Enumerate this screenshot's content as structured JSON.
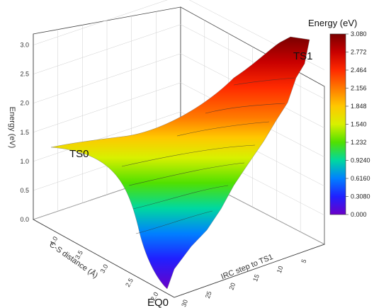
{
  "chart_data": {
    "type": "surface3d",
    "title": "",
    "zlabel": "Energy (eV)",
    "xlabel": "C-S distance (Å)",
    "ylabel": "IRC step to TS1",
    "zlim": [
      0,
      3.08
    ],
    "z_ticks": [
      "0.0",
      "0.5",
      "1.0",
      "1.5",
      "2.0",
      "2.5",
      "3.0"
    ],
    "x_ticks": [
      "2.0",
      "2.5",
      "3.0",
      "3.5",
      "4.0"
    ],
    "y_ticks": [
      "5",
      "10",
      "15",
      "20",
      "25",
      "30"
    ],
    "colorbar": {
      "title": "Energy (eV)",
      "levels": [
        "3.080",
        "2.772",
        "2.464",
        "2.156",
        "1.848",
        "1.540",
        "1.232",
        "0.9240",
        "0.6160",
        "0.3080",
        "0.000"
      ],
      "colors": [
        "#7a0000",
        "#c80000",
        "#ff2a00",
        "#ff7a00",
        "#ffc800",
        "#d8f000",
        "#50e000",
        "#00d8a0",
        "#0080ff",
        "#2020ff",
        "#6a00c8"
      ]
    },
    "annotations": [
      "TS0",
      "TS1",
      "EQ0"
    ],
    "surface_points": {
      "EQ0": {
        "energy": 0.0
      },
      "TS0": {
        "energy": 1.2
      },
      "TS1": {
        "energy": 3.08
      }
    },
    "grid": true
  }
}
